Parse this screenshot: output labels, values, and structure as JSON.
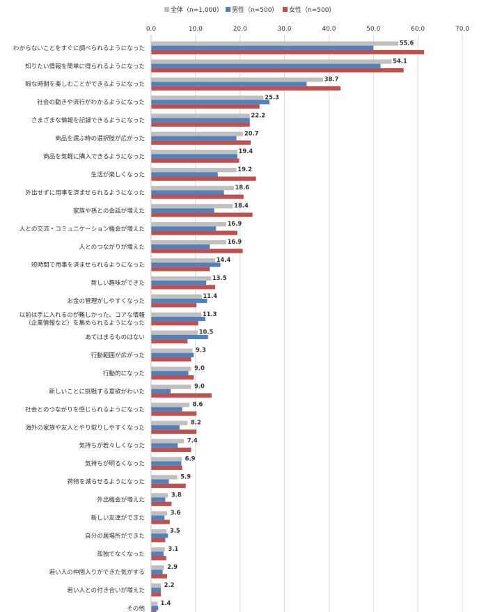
{
  "chart_data": {
    "type": "bar",
    "orientation": "horizontal",
    "title": "",
    "xlabel": "",
    "ylabel": "",
    "xlim": [
      0,
      70
    ],
    "ticks": [
      0,
      10,
      20,
      30,
      40,
      50,
      60,
      70
    ],
    "tick_labels": [
      "0.0",
      "10.0",
      "20.0",
      "30.0",
      "40.0",
      "50.0",
      "60.0",
      "70.0"
    ],
    "grid": true,
    "legend_position": "top",
    "categories": [
      [
        "わからないことをすぐに調べられるようになった"
      ],
      [
        "知りたい情報を簡単に得られるようになった"
      ],
      [
        "暇な時間を楽しむことができるようになった"
      ],
      [
        "社会の動きや流行がわかるようになった"
      ],
      [
        "さまざまな情報を記録できるようになった"
      ],
      [
        "商品を選ぶ時の選択肢が広がった"
      ],
      [
        "商品を気軽に購入できるようになった"
      ],
      [
        "生活が楽しくなった"
      ],
      [
        "外出せずに用事を済ませられるようになった"
      ],
      [
        "家族や孫との会話が増えた"
      ],
      [
        "人との交流・コミュニケーション機会が増えた"
      ],
      [
        "人とのつながりが増えた"
      ],
      [
        "短時間で用事を済ませられるようになった"
      ],
      [
        "新しい趣味ができた"
      ],
      [
        "お金の管理がしやすくなった"
      ],
      [
        "以前は手に入れるのが難しかった、コアな情報",
        "（企業情報など）を集められるようになった"
      ],
      [
        "あてはまるものはない"
      ],
      [
        "行動範囲が広がった"
      ],
      [
        "行動的になった"
      ],
      [
        "新しいことに挑戦する意欲がわいた"
      ],
      [
        "社会とのつながりを感じられるようになった"
      ],
      [
        "海外の家族や友人とやり取りしやすくなった"
      ],
      [
        "気持ちが若々しくなった"
      ],
      [
        "気持ちが明るくなった"
      ],
      [
        "荷物を減らせるようになった"
      ],
      [
        "外出機会が増えた"
      ],
      [
        "新しい友達ができた"
      ],
      [
        "自分の居場所ができた"
      ],
      [
        "孤独でなくなった"
      ],
      [
        "若い人の仲間入りができた気がする"
      ],
      [
        "若い人との付き合いが増えた"
      ],
      [
        "その他"
      ]
    ],
    "value_labels": [
      "55.6",
      "54.1",
      "38.7",
      "25.3",
      "22.2",
      "20.7",
      "19.4",
      "19.2",
      "18.6",
      "18.4",
      "16.9",
      "16.9",
      "14.4",
      "13.5",
      "11.4",
      "11.3",
      "10.5",
      "9.3",
      "9.0",
      "9.0",
      "8.6",
      "8.2",
      "7.4",
      "6.9",
      "5.9",
      "3.8",
      "3.6",
      "3.5",
      "3.1",
      "2.9",
      "2.2",
      "1.4"
    ],
    "series": [
      {
        "name": "全体（n=1,000）",
        "color": "#bfbfbf",
        "values": [
          55.6,
          54.1,
          38.7,
          25.3,
          22.2,
          20.7,
          19.4,
          19.2,
          18.6,
          18.4,
          16.9,
          16.9,
          14.4,
          13.5,
          11.4,
          11.3,
          10.5,
          9.3,
          9.0,
          9.0,
          8.6,
          8.2,
          7.4,
          6.9,
          5.9,
          3.8,
          3.6,
          3.5,
          3.1,
          2.9,
          2.2,
          1.4
        ]
      },
      {
        "name": "男性（n=500）",
        "color": "#4f81bd",
        "values": [
          50.0,
          51.6,
          35.0,
          26.6,
          22.2,
          19.2,
          19.4,
          15.0,
          16.4,
          14.2,
          14.6,
          13.2,
          15.6,
          12.4,
          12.6,
          12.2,
          12.8,
          9.6,
          8.4,
          4.4,
          7.0,
          6.4,
          6.0,
          6.8,
          4.0,
          3.2,
          3.0,
          3.8,
          2.8,
          2.6,
          2.2,
          1.6
        ]
      },
      {
        "name": "女性（n=500）",
        "color": "#c0504d",
        "values": [
          61.4,
          56.8,
          42.6,
          24.4,
          22.2,
          22.4,
          19.8,
          23.6,
          20.8,
          22.8,
          19.4,
          20.6,
          13.2,
          14.4,
          10.2,
          10.6,
          8.2,
          9.0,
          9.6,
          13.6,
          10.2,
          10.2,
          9.0,
          7.0,
          7.8,
          4.6,
          4.2,
          3.2,
          3.4,
          3.6,
          2.2,
          1.2
        ]
      }
    ]
  }
}
